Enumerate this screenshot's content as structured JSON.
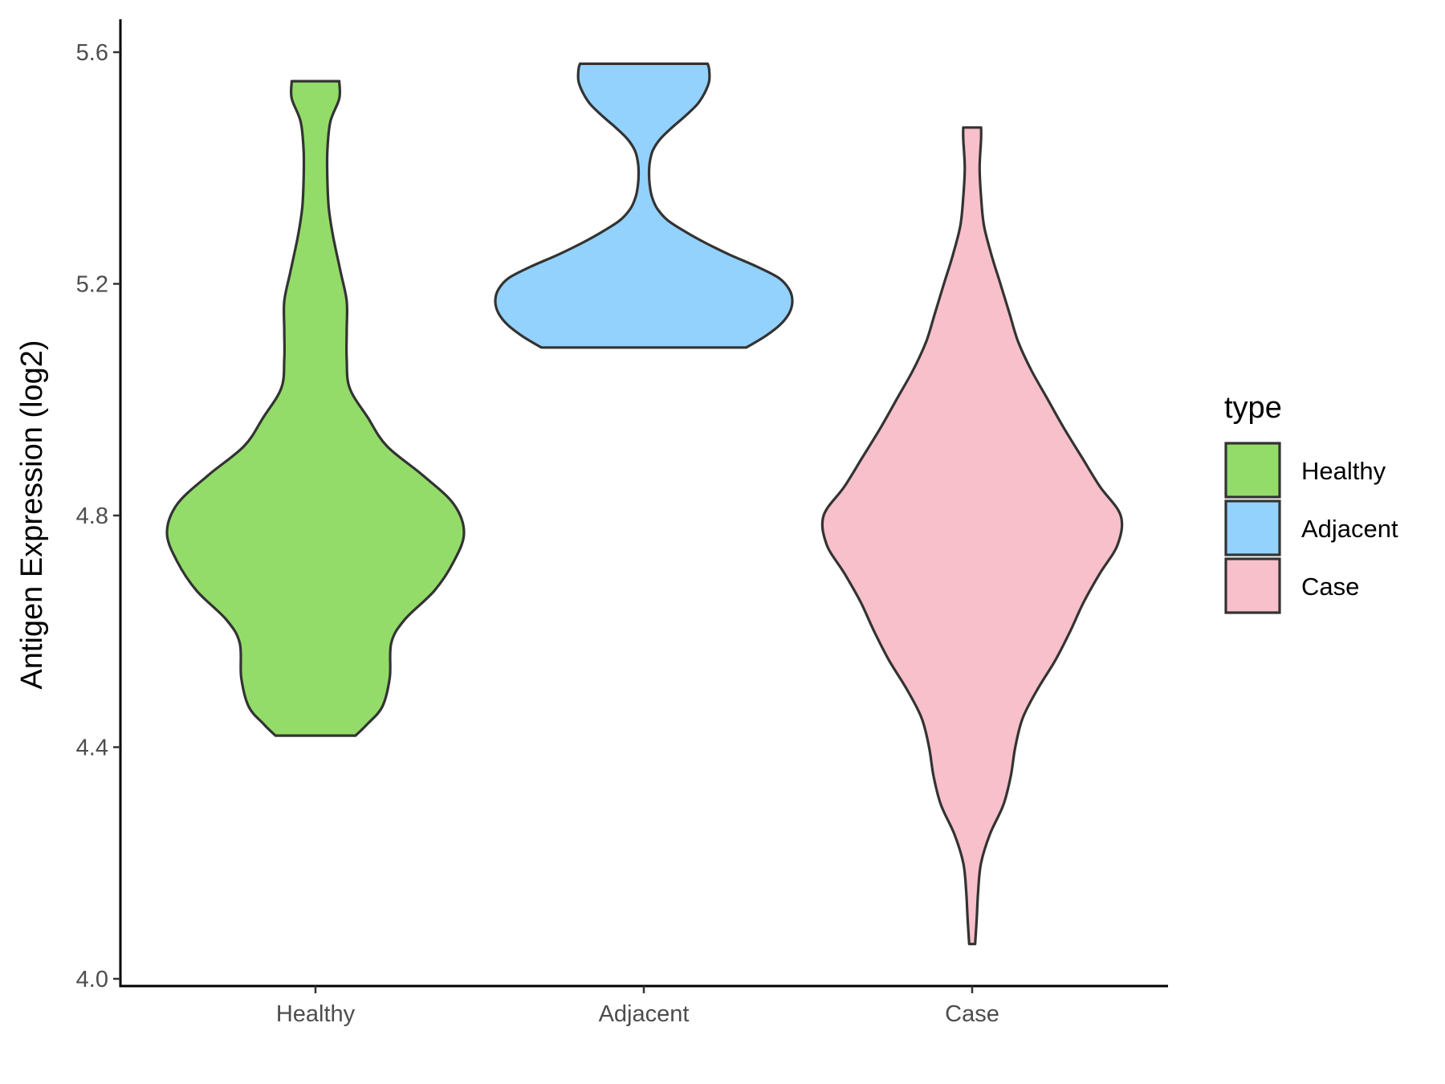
{
  "chart_data": {
    "type": "violin",
    "title": "",
    "xlabel": "",
    "ylabel": "Antigen Expression (log2)",
    "ylim": [
      4.0,
      5.6
    ],
    "yticks": [
      "4.0",
      "4.4",
      "4.8",
      "5.2",
      "5.6"
    ],
    "ytick_values": [
      4.0,
      4.4,
      4.8,
      5.2,
      5.6
    ],
    "categories": [
      "Healthy",
      "Adjacent",
      "Case"
    ],
    "grid": false,
    "legend": {
      "title": "type",
      "placement": "right",
      "entries": [
        "Healthy",
        "Adjacent",
        "Case"
      ]
    },
    "colors": {
      "Healthy": "#93dc69",
      "Adjacent": "#93d2fd",
      "Case": "#f8c0cb",
      "outline": "#333333"
    },
    "series": [
      {
        "category": "Healthy",
        "min": 4.42,
        "max": 5.55,
        "profile": [
          [
            4.42,
            0.27
          ],
          [
            4.44,
            0.35
          ],
          [
            4.47,
            0.45
          ],
          [
            4.52,
            0.5
          ],
          [
            4.58,
            0.51
          ],
          [
            4.62,
            0.6
          ],
          [
            4.67,
            0.8
          ],
          [
            4.72,
            0.93
          ],
          [
            4.77,
            1.0
          ],
          [
            4.82,
            0.93
          ],
          [
            4.87,
            0.72
          ],
          [
            4.92,
            0.48
          ],
          [
            4.97,
            0.35
          ],
          [
            5.02,
            0.23
          ],
          [
            5.07,
            0.21
          ],
          [
            5.12,
            0.21
          ],
          [
            5.17,
            0.21
          ],
          [
            5.22,
            0.17
          ],
          [
            5.28,
            0.12
          ],
          [
            5.33,
            0.09
          ],
          [
            5.38,
            0.08
          ],
          [
            5.43,
            0.08
          ],
          [
            5.48,
            0.1
          ],
          [
            5.52,
            0.16
          ],
          [
            5.55,
            0.16
          ]
        ]
      },
      {
        "category": "Adjacent",
        "min": 5.09,
        "max": 5.58,
        "profile": [
          [
            5.09,
            0.69
          ],
          [
            5.11,
            0.82
          ],
          [
            5.13,
            0.92
          ],
          [
            5.15,
            0.98
          ],
          [
            5.17,
            1.0
          ],
          [
            5.19,
            0.98
          ],
          [
            5.21,
            0.91
          ],
          [
            5.23,
            0.76
          ],
          [
            5.25,
            0.58
          ],
          [
            5.27,
            0.42
          ],
          [
            5.29,
            0.28
          ],
          [
            5.31,
            0.16
          ],
          [
            5.33,
            0.09
          ],
          [
            5.35,
            0.055
          ],
          [
            5.37,
            0.04
          ],
          [
            5.39,
            0.035
          ],
          [
            5.41,
            0.04
          ],
          [
            5.43,
            0.06
          ],
          [
            5.45,
            0.11
          ],
          [
            5.47,
            0.19
          ],
          [
            5.49,
            0.28
          ],
          [
            5.51,
            0.36
          ],
          [
            5.53,
            0.41
          ],
          [
            5.55,
            0.44
          ],
          [
            5.57,
            0.44
          ],
          [
            5.58,
            0.43
          ]
        ]
      },
      {
        "category": "Case",
        "min": 4.06,
        "max": 5.47,
        "profile": [
          [
            4.06,
            0.02
          ],
          [
            4.1,
            0.03
          ],
          [
            4.15,
            0.04
          ],
          [
            4.2,
            0.06
          ],
          [
            4.25,
            0.12
          ],
          [
            4.3,
            0.21
          ],
          [
            4.35,
            0.26
          ],
          [
            4.4,
            0.29
          ],
          [
            4.45,
            0.34
          ],
          [
            4.5,
            0.44
          ],
          [
            4.55,
            0.56
          ],
          [
            4.6,
            0.66
          ],
          [
            4.65,
            0.75
          ],
          [
            4.7,
            0.86
          ],
          [
            4.75,
            0.98
          ],
          [
            4.8,
            1.0
          ],
          [
            4.85,
            0.86
          ],
          [
            4.9,
            0.74
          ],
          [
            4.95,
            0.62
          ],
          [
            5.0,
            0.51
          ],
          [
            5.05,
            0.4
          ],
          [
            5.1,
            0.31
          ],
          [
            5.15,
            0.25
          ],
          [
            5.2,
            0.19
          ],
          [
            5.25,
            0.13
          ],
          [
            5.3,
            0.08
          ],
          [
            5.35,
            0.06
          ],
          [
            5.4,
            0.05
          ],
          [
            5.45,
            0.06
          ],
          [
            5.47,
            0.06
          ]
        ]
      }
    ]
  }
}
